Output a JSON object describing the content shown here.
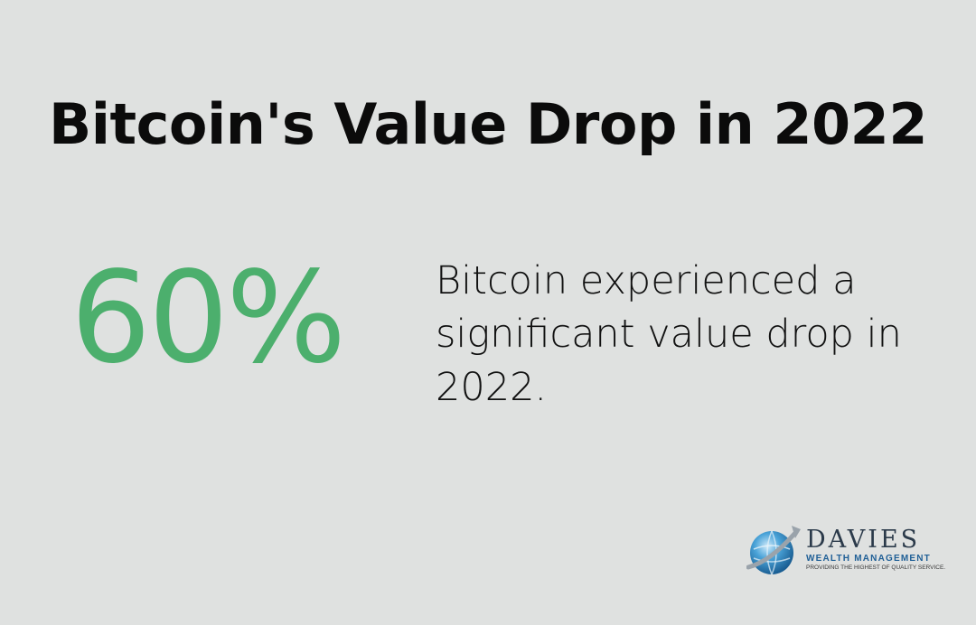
{
  "title": "Bitcoin's Value Drop in 2022",
  "stat": {
    "value": "60%",
    "description": "Bitcoin experienced a significant value drop in 2022."
  },
  "logo": {
    "name": "DAVIES",
    "subtitle": "WEALTH MANAGEMENT",
    "tagline": "PROVIDING THE HIGHEST OF QUALITY SERVICE.",
    "icon": "globe-arrow-icon"
  },
  "colors": {
    "background": "#dfe1e0",
    "accent": "#4caf6d",
    "text": "#0b0b0b",
    "logo_blue": "#1f5f96"
  }
}
